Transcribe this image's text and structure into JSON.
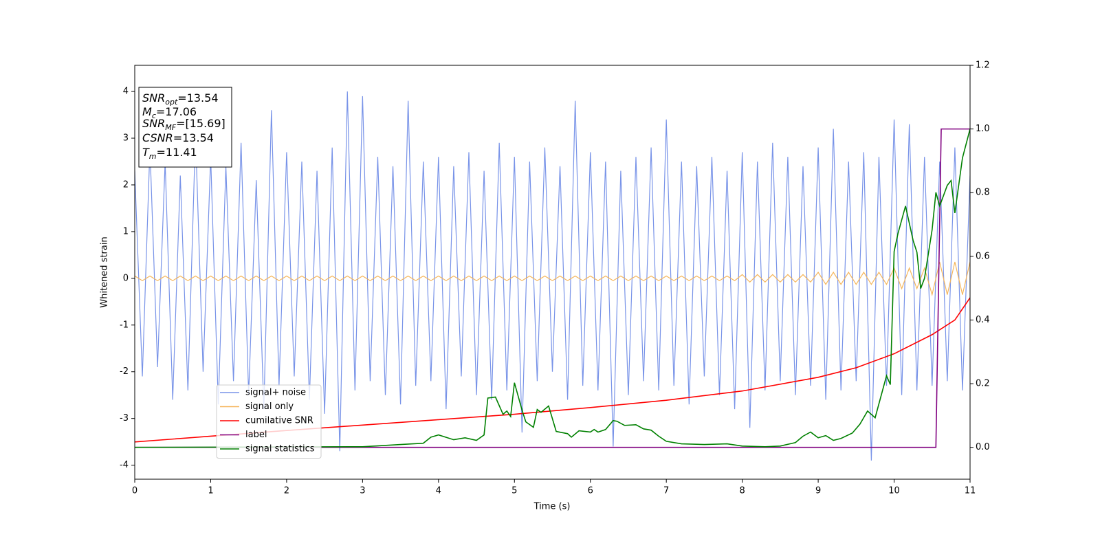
{
  "chart_data": {
    "type": "line",
    "xlabel": "Time (s)",
    "ylabel": "Whitened strain",
    "xlim": [
      0,
      11
    ],
    "ylim": [
      -4.3,
      4.56
    ],
    "y2lim": [
      -0.1,
      1.2
    ],
    "xticks": [
      0,
      1,
      2,
      3,
      4,
      5,
      6,
      7,
      8,
      9,
      10,
      11
    ],
    "yticks": [
      -4,
      -3,
      -2,
      -1,
      0,
      1,
      2,
      3,
      4
    ],
    "y2ticks": [
      {
        "value": 0,
        "label": "0.0"
      },
      {
        "value": 0.2,
        "label": "0.2"
      },
      {
        "value": 0.4,
        "label": "0.4"
      },
      {
        "value": 0.6,
        "label": "0.6"
      },
      {
        "value": 0.8,
        "label": "0.8"
      },
      {
        "value": 1.0,
        "label": "1.0"
      },
      {
        "value": 1.2,
        "label": "1.2"
      }
    ],
    "legend": "lower left",
    "annotation": [
      {
        "base": "SNR",
        "sub": "opt",
        "rest": "=13.54"
      },
      {
        "base": "M",
        "sub": "c",
        "rest": "=17.06"
      },
      {
        "base": "SNR",
        "sub": "MF",
        "rest": "=[15.69]"
      },
      {
        "base": "CSNR",
        "sub": "",
        "rest": "=13.54"
      },
      {
        "base": "T",
        "sub": "m",
        "rest": "=11.41"
      }
    ],
    "x": [
      0,
      0.1,
      0.2,
      0.3,
      0.4,
      0.5,
      0.6,
      0.7,
      0.8,
      0.9,
      1,
      1.1,
      1.2,
      1.3,
      1.4,
      1.5,
      1.6,
      1.7,
      1.8,
      1.9,
      2,
      2.1,
      2.2,
      2.3,
      2.4,
      2.5,
      2.6,
      2.7,
      2.8,
      2.9,
      3,
      3.1,
      3.2,
      3.3,
      3.4,
      3.5,
      3.6,
      3.7,
      3.8,
      3.9,
      4,
      4.1,
      4.2,
      4.3,
      4.4,
      4.5,
      4.6,
      4.7,
      4.8,
      4.9,
      5,
      5.1,
      5.2,
      5.3,
      5.4,
      5.5,
      5.6,
      5.7,
      5.8,
      5.9,
      6,
      6.1,
      6.2,
      6.3,
      6.4,
      6.5,
      6.6,
      6.7,
      6.8,
      6.9,
      7,
      7.1,
      7.2,
      7.3,
      7.4,
      7.5,
      7.6,
      7.7,
      7.8,
      7.9,
      8,
      8.1,
      8.2,
      8.3,
      8.4,
      8.5,
      8.6,
      8.7,
      8.8,
      8.9,
      9,
      9.1,
      9.2,
      9.3,
      9.4,
      9.5,
      9.6,
      9.7,
      9.8,
      9.9,
      10,
      10.1,
      10.2,
      10.3,
      10.4,
      10.5,
      10.6,
      10.7,
      10.8,
      10.9,
      11
    ],
    "series": [
      {
        "name": "signal+ noise",
        "color": "#7893e8",
        "width": 1.2,
        "values": [
          2.3,
          -2.1,
          2.8,
          -1.9,
          2.5,
          -2.6,
          2.2,
          -2.4,
          3.1,
          -2.0,
          2.6,
          -2.7,
          2.4,
          -2.2,
          2.9,
          -2.5,
          2.1,
          -2.8,
          3.6,
          -2.3,
          2.7,
          -2.1,
          2.5,
          -2.6,
          2.3,
          -2.9,
          2.8,
          -3.7,
          4.0,
          -2.4,
          3.9,
          -2.2,
          2.6,
          -2.5,
          2.4,
          -2.7,
          3.8,
          -2.3,
          2.5,
          -2.2,
          2.6,
          -2.8,
          2.4,
          -2.1,
          2.7,
          -2.5,
          2.3,
          -2.6,
          2.9,
          -2.4,
          2.6,
          -3.3,
          2.5,
          -2.2,
          2.8,
          -2.0,
          2.4,
          -2.6,
          3.8,
          -2.3,
          2.7,
          -2.4,
          2.5,
          -3.6,
          2.3,
          -2.5,
          2.6,
          -2.2,
          2.8,
          -2.4,
          3.4,
          -2.3,
          2.5,
          -2.7,
          2.4,
          -2.1,
          2.6,
          -2.5,
          2.3,
          -2.8,
          2.7,
          -3.2,
          2.5,
          -2.4,
          2.9,
          -2.2,
          2.6,
          -2.5,
          2.4,
          -2.3,
          2.8,
          -2.6,
          3.2,
          -2.4,
          2.5,
          -2.2,
          2.7,
          -3.9,
          2.6,
          -2.3,
          3.4,
          -2.5,
          3.3,
          -2.4,
          2.6,
          -2.3,
          2.5,
          -2.2,
          2.8,
          -2.4,
          2.2
        ]
      },
      {
        "name": "signal only",
        "color": "#f5b55a",
        "width": 1.2,
        "values": [
          0.05,
          -0.05,
          0.05,
          -0.05,
          0.05,
          -0.05,
          0.05,
          -0.05,
          0.05,
          -0.05,
          0.05,
          -0.05,
          0.05,
          -0.05,
          0.05,
          -0.05,
          0.05,
          -0.05,
          0.05,
          -0.05,
          0.05,
          -0.05,
          0.05,
          -0.05,
          0.05,
          -0.05,
          0.05,
          -0.05,
          0.05,
          -0.05,
          0.05,
          -0.05,
          0.05,
          -0.05,
          0.05,
          -0.05,
          0.05,
          -0.05,
          0.05,
          -0.05,
          0.05,
          -0.05,
          0.05,
          -0.05,
          0.05,
          -0.05,
          0.05,
          -0.05,
          0.05,
          -0.05,
          0.05,
          -0.05,
          0.05,
          -0.05,
          0.05,
          -0.05,
          0.05,
          -0.05,
          0.05,
          -0.05,
          0.05,
          -0.05,
          0.05,
          -0.05,
          0.05,
          -0.05,
          0.05,
          -0.05,
          0.05,
          -0.05,
          0.05,
          -0.05,
          0.05,
          -0.05,
          0.05,
          -0.05,
          0.05,
          -0.05,
          0.05,
          -0.05,
          0.08,
          -0.08,
          0.08,
          -0.08,
          0.08,
          -0.08,
          0.08,
          -0.08,
          0.08,
          -0.08,
          0.13,
          -0.13,
          0.13,
          -0.13,
          0.13,
          -0.13,
          0.13,
          -0.13,
          0.13,
          -0.13,
          0.22,
          -0.22,
          0.22,
          -0.22,
          0.22,
          -0.35,
          0.35,
          -0.35,
          0.35,
          -0.35,
          0.35
        ]
      },
      {
        "name": "cumilative SNR",
        "color": "#ff0000",
        "width": 1.6,
        "axis": "y2",
        "x": [
          0,
          1,
          2,
          3,
          4,
          5,
          6,
          7,
          8,
          9,
          9.5,
          10,
          10.5,
          10.8,
          11
        ],
        "values": [
          0.017,
          0.035,
          0.053,
          0.07,
          0.087,
          0.104,
          0.125,
          0.148,
          0.177,
          0.22,
          0.25,
          0.294,
          0.354,
          0.4,
          0.47
        ]
      },
      {
        "name": "label",
        "color": "#800080",
        "width": 1.6,
        "axis": "y2",
        "x": [
          0,
          10.55,
          10.62,
          11
        ],
        "values": [
          0,
          0,
          1,
          1
        ]
      },
      {
        "name": "signal statistics",
        "color": "#008000",
        "width": 1.6,
        "axis": "y2",
        "x": [
          0,
          3,
          3.5,
          3.8,
          3.9,
          4,
          4.2,
          4.35,
          4.5,
          4.6,
          4.65,
          4.75,
          4.85,
          4.9,
          4.95,
          5.0,
          5.1,
          5.15,
          5.25,
          5.3,
          5.35,
          5.45,
          5.55,
          5.7,
          5.75,
          5.85,
          6.0,
          6.05,
          6.1,
          6.2,
          6.3,
          6.35,
          6.45,
          6.6,
          6.7,
          6.8,
          6.9,
          7,
          7.2,
          7.5,
          7.8,
          8,
          8.3,
          8.5,
          8.7,
          8.8,
          8.9,
          9.0,
          9.1,
          9.2,
          9.3,
          9.45,
          9.55,
          9.65,
          9.75,
          9.9,
          9.95,
          10,
          10.05,
          10.15,
          10.25,
          10.3,
          10.35,
          10.4,
          10.5,
          10.55,
          10.6,
          10.7,
          10.75,
          10.8,
          10.9,
          11
        ],
        "values": [
          0,
          0.002,
          0.009,
          0.013,
          0.032,
          0.039,
          0.024,
          0.03,
          0.022,
          0.039,
          0.155,
          0.158,
          0.104,
          0.114,
          0.097,
          0.203,
          0.117,
          0.08,
          0.063,
          0.119,
          0.11,
          0.13,
          0.05,
          0.043,
          0.032,
          0.052,
          0.048,
          0.056,
          0.048,
          0.056,
          0.084,
          0.082,
          0.069,
          0.071,
          0.058,
          0.054,
          0.035,
          0.019,
          0.011,
          0.009,
          0.011,
          0.004,
          0.002,
          0.004,
          0.015,
          0.035,
          0.048,
          0.03,
          0.037,
          0.022,
          0.028,
          0.045,
          0.073,
          0.114,
          0.093,
          0.225,
          0.197,
          0.615,
          0.671,
          0.758,
          0.65,
          0.613,
          0.499,
          0.531,
          0.683,
          0.801,
          0.758,
          0.823,
          0.838,
          0.736,
          0.909,
          1.0
        ]
      }
    ]
  }
}
